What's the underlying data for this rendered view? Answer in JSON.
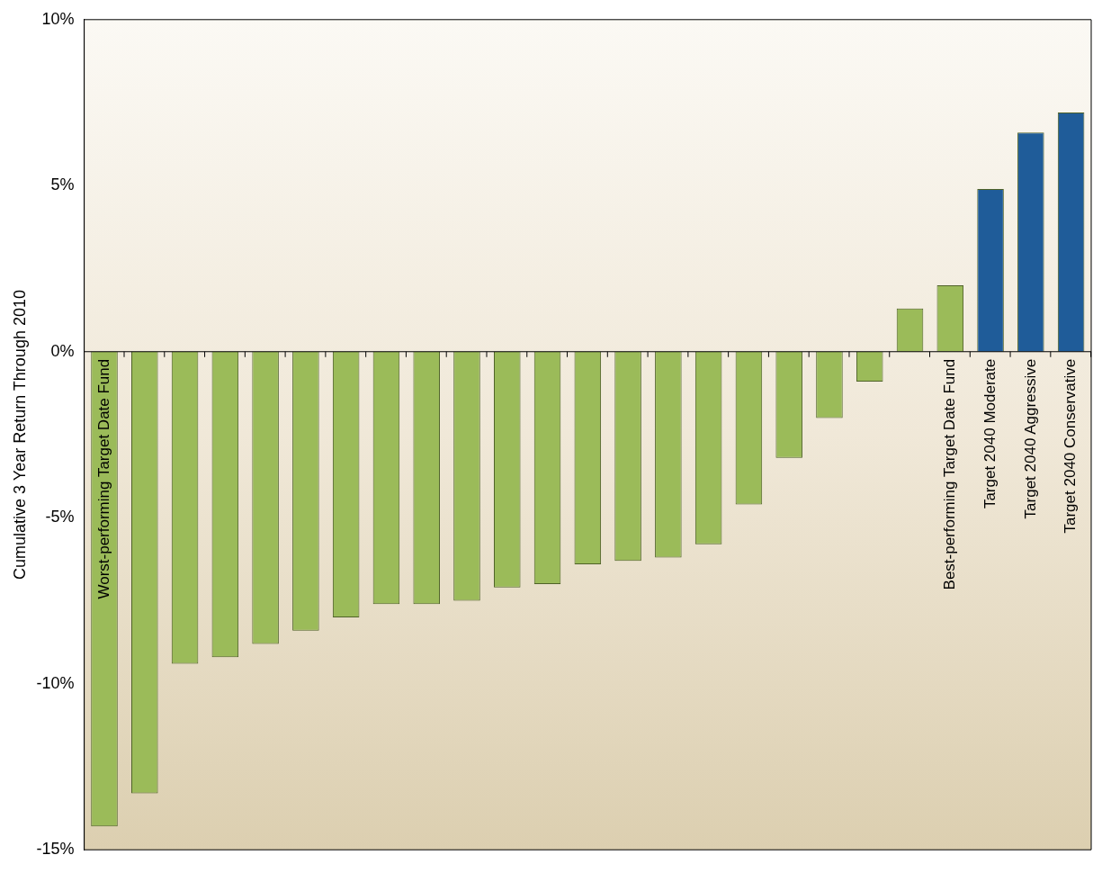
{
  "chart_data": {
    "type": "bar",
    "ylabel": "Cumulative 3 Year Return Through 2010",
    "categories": [
      "Worst-performing Target Date Fund",
      null,
      null,
      null,
      null,
      null,
      null,
      null,
      null,
      null,
      null,
      null,
      null,
      null,
      null,
      null,
      null,
      null,
      null,
      null,
      null,
      "Best-performing Target Date Fund",
      "Target 2040 Moderate",
      "Target 2040 Aggressive",
      "Target 2040 Conservative"
    ],
    "values": [
      -14.3,
      -13.3,
      -9.4,
      -9.2,
      -8.8,
      -8.4,
      -8.0,
      -7.6,
      -7.6,
      -7.5,
      -7.1,
      -7.0,
      -6.4,
      -6.3,
      -6.2,
      -5.8,
      -4.6,
      -3.2,
      -2.0,
      -0.9,
      1.3,
      2.0,
      4.9,
      6.6,
      7.2
    ],
    "colors": [
      "#9bbb59",
      "#9bbb59",
      "#9bbb59",
      "#9bbb59",
      "#9bbb59",
      "#9bbb59",
      "#9bbb59",
      "#9bbb59",
      "#9bbb59",
      "#9bbb59",
      "#9bbb59",
      "#9bbb59",
      "#9bbb59",
      "#9bbb59",
      "#9bbb59",
      "#9bbb59",
      "#9bbb59",
      "#9bbb59",
      "#9bbb59",
      "#9bbb59",
      "#9bbb59",
      "#9bbb59",
      "#1f5c99",
      "#1f5c99",
      "#1f5c99"
    ],
    "ylim": [
      -15,
      10
    ],
    "yticks": [
      {
        "value": 10,
        "label": "10%"
      },
      {
        "value": 5,
        "label": "5%"
      },
      {
        "value": 0,
        "label": "0%"
      },
      {
        "value": -5,
        "label": "-5%"
      },
      {
        "value": -10,
        "label": "-10%"
      },
      {
        "value": -15,
        "label": "-15%"
      }
    ],
    "grid": false,
    "legend": false
  }
}
